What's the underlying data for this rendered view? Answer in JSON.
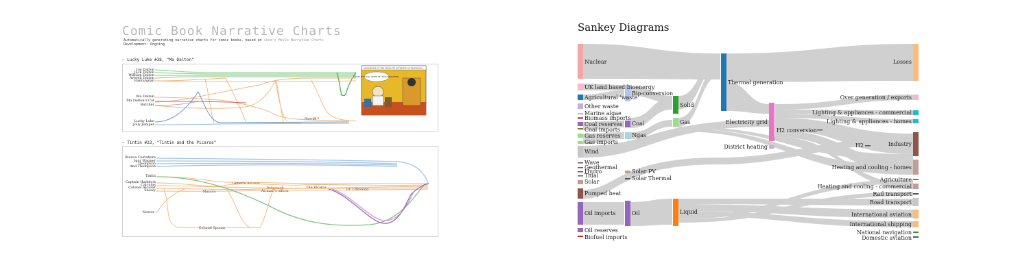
{
  "comic": {
    "title": "Comic Book Narrative Charts",
    "subtitle_before_link": "Automatically generating narrative charts for comic books, based on ",
    "subtitle_link": "xkcd",
    "subtitle_after_link": "'s Movie Narrative Charts",
    "development": "Development: Ongoing",
    "charts": [
      {
        "heading": "– Lucky Luke #38, \"Ma Dalton\"",
        "characters": [
          "Joe Dalton",
          "Jack Dalton",
          "William Dalton",
          "Averell Dalton",
          "Rantanplan",
          "Ma Dalton",
          "Ma Dalton's Cat",
          "Butcher",
          "Lucky Luke",
          "Jolly Jumper",
          "Sheriff ?"
        ],
        "panel_caption": "MEANWHILE, IN THE DESOLATE OUTSKIRTS OF DEADWOOD...",
        "panel_bubble": "LUCKY LUKE WILL NEVER GET AWAY FROM HERE!"
      },
      {
        "heading": "– Tintin #23, \"Tintin and the Picaros\"",
        "characters": [
          "Bianca Castafiore",
          "Igor Wagner",
          "Thompson",
          "And Thompson",
          "Tintin",
          "Captain Haddock",
          "Calculus",
          "Colonel Alcazar",
          "Snowy",
          "General Alcazar",
          "Manolo",
          "Ridgewell",
          "Alcazar's officer",
          "The Picaros",
          "Dr. Lifkowski",
          "Nestor",
          "Colonel Sponsz"
        ]
      }
    ]
  },
  "sankey": {
    "title": "Sankey Diagrams",
    "nodes": {
      "nuclear": "Nuclear",
      "uk_land": "UK land based bioenergy",
      "agri": "Agricultural 'waste'",
      "other_waste": "Other waste",
      "marine": "Marine algae",
      "bio_imports": "Biomass imports",
      "coal_res": "Coal reserves",
      "coal_imp": "Coal imports",
      "gas_res": "Gas reserves",
      "gas_imp": "Gas imports",
      "wind": "Wind",
      "wave": "Wave",
      "geo": "Geothermal",
      "hydro": "Hydro",
      "tidal": "Tidal",
      "solar": "Solar",
      "pumped": "Pumped heat",
      "oil_imp": "Oil imports",
      "oil_res": "Oil reserves",
      "biofuel": "Biofuel imports",
      "bio_conv": "Bio-conversion",
      "coal": "Coal",
      "ngas": "Ngas",
      "solar_pv": "Solar PV",
      "solar_th": "Solar Thermal",
      "oil": "Oil",
      "solid": "Solid",
      "gas": "Gas",
      "liquid": "Liquid",
      "thermal": "Thermal generation",
      "grid": "Electricity grid",
      "district": "District heating",
      "h2conv": "H2 conversion",
      "h2": "H2",
      "losses": "Losses",
      "over_gen": "Over generation / exports",
      "light_com": "Lighting & appliances - commercial",
      "light_home": "Lighting & appliances - homes",
      "industry": "Industry",
      "heat_home": "Heating and cooling - homes",
      "agriculture": "Agriculture",
      "heat_com": "Heating and cooling - commercial",
      "rail": "Rail transport",
      "road": "Road transport",
      "intl_av": "International aviation",
      "intl_ship": "International shipping",
      "nat_nav": "National navigation",
      "dom_av": "Domestic aviation"
    }
  },
  "colors": {
    "nuclear": "#f4a6a6",
    "uk_land": "#f7b6d2",
    "agri": "#1f77b4",
    "other_waste": "#c5b0d5",
    "thermal": "#1f77b4",
    "grid": "#e377c2",
    "solid": "#2ca02c",
    "gas": "#98df8a",
    "liquid": "#ff7f0e",
    "oil": "#9467bd",
    "losses": "#ffbb78",
    "industry": "#8c564b",
    "link": "#c8c8c8"
  }
}
